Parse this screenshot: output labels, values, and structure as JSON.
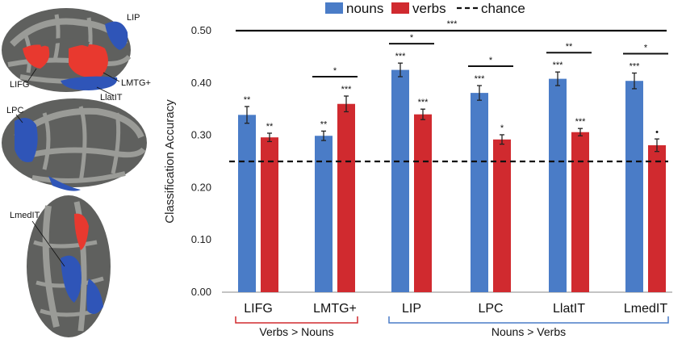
{
  "chart_data": {
    "type": "bar",
    "categories": [
      "LIFG",
      "LMTG+",
      "LIP",
      "LPC",
      "LlatIT",
      "LmedIT"
    ],
    "series": [
      {
        "name": "nouns",
        "color": "#4a7cc7",
        "values": [
          0.339,
          0.299,
          0.425,
          0.381,
          0.408,
          0.404
        ],
        "errors": [
          0.016,
          0.009,
          0.013,
          0.014,
          0.013,
          0.015
        ],
        "sig": [
          "**",
          "**",
          "***",
          "***",
          "***",
          "***"
        ]
      },
      {
        "name": "verbs",
        "color": "#d02a2f",
        "values": [
          0.296,
          0.36,
          0.34,
          0.292,
          0.306,
          0.281
        ],
        "errors": [
          0.008,
          0.015,
          0.01,
          0.009,
          0.007,
          0.012
        ],
        "sig": [
          "**",
          "***",
          "***",
          "*",
          "***",
          "•"
        ]
      }
    ],
    "pairwise": [
      "",
      "*",
      "*",
      "*",
      "**",
      "*"
    ],
    "overall_sig": "***",
    "chance": {
      "label": "chance",
      "value": 0.25
    },
    "ylabel": "Classification Accuracy",
    "yticks": [
      "0.00",
      "0.10",
      "0.20",
      "0.30",
      "0.40",
      "0.50"
    ],
    "ylim": [
      0,
      0.5
    ],
    "legend_position": "top",
    "groups": [
      {
        "label": "Verbs > Nouns",
        "color": "#d02a2f",
        "categories": [
          "LIFG",
          "LMTG+"
        ]
      },
      {
        "label": "Nouns > Verbs",
        "color": "#4a7cc7",
        "categories": [
          "LIP",
          "LPC",
          "LlatIT",
          "LmedIT"
        ]
      }
    ]
  },
  "brain_labels": [
    "LIP",
    "LIFG",
    "LMTG+",
    "LlatIT",
    "LPC",
    "LmedIT"
  ],
  "colors": {
    "surface_dark": "#5f605e",
    "surface_light": "#9a9b97",
    "blue": "#2f55b8",
    "red": "#e8392f"
  }
}
